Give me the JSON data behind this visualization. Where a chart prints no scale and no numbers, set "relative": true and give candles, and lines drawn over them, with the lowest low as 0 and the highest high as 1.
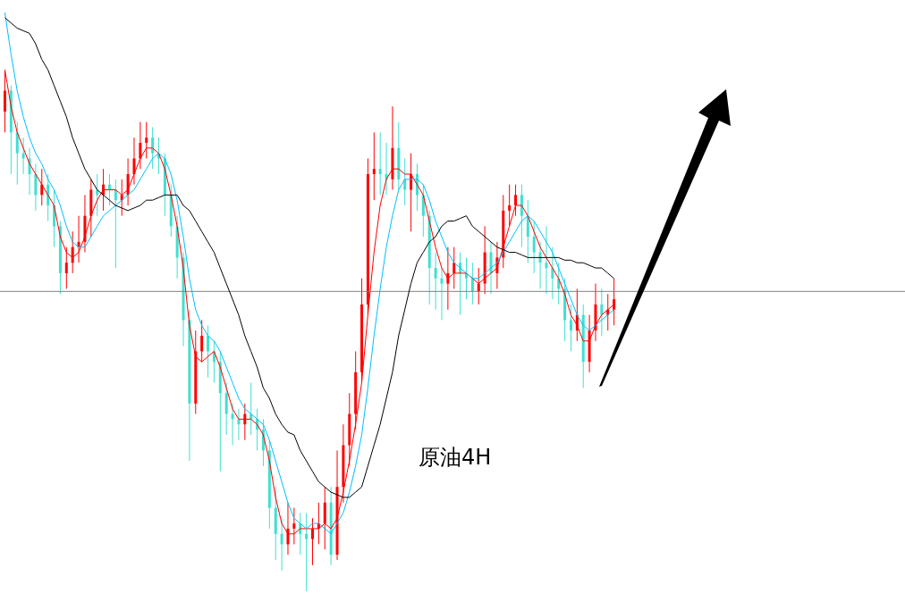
{
  "chart_data": {
    "type": "candlestick",
    "relative": true,
    "categories": [
      null,
      null,
      null,
      null,
      null,
      null,
      null,
      null,
      null,
      null,
      null,
      null,
      null,
      null,
      null,
      null,
      null,
      null,
      null,
      null,
      null,
      null,
      null,
      null,
      null,
      null,
      null,
      null,
      null,
      null,
      null,
      null,
      null,
      null,
      null,
      null,
      null,
      null,
      null,
      null,
      null,
      null,
      null,
      null,
      null,
      null,
      null,
      null,
      null,
      null,
      null,
      null,
      null,
      null,
      null,
      null,
      null,
      null,
      null,
      null,
      null,
      null,
      null,
      null,
      null,
      null,
      null,
      null,
      null,
      null,
      null,
      null,
      null,
      null,
      null,
      null,
      null,
      null,
      null,
      null,
      null,
      null,
      null,
      null,
      null,
      null,
      null,
      null,
      null,
      null,
      null,
      null,
      null,
      null,
      null,
      null,
      null,
      null,
      null,
      null
    ],
    "ohlc": [
      [
        0.92,
        1.0,
        0.88,
        0.96
      ],
      [
        0.96,
        0.97,
        0.8,
        0.88
      ],
      [
        0.88,
        0.9,
        0.78,
        0.84
      ],
      [
        0.84,
        0.87,
        0.8,
        0.83
      ],
      [
        0.83,
        0.85,
        0.76,
        0.8
      ],
      [
        0.8,
        0.82,
        0.73,
        0.76
      ],
      [
        0.76,
        0.81,
        0.74,
        0.78
      ],
      [
        0.78,
        0.8,
        0.71,
        0.74
      ],
      [
        0.74,
        0.77,
        0.66,
        0.7
      ],
      [
        0.7,
        0.71,
        0.57,
        0.61
      ],
      [
        0.61,
        0.66,
        0.58,
        0.63
      ],
      [
        0.63,
        0.69,
        0.61,
        0.66
      ],
      [
        0.66,
        0.72,
        0.63,
        0.67
      ],
      [
        0.67,
        0.76,
        0.65,
        0.72
      ],
      [
        0.72,
        0.79,
        0.68,
        0.77
      ],
      [
        0.77,
        0.8,
        0.72,
        0.76
      ],
      [
        0.76,
        0.81,
        0.73,
        0.78
      ],
      [
        0.78,
        0.8,
        0.74,
        0.77
      ],
      [
        0.77,
        0.79,
        0.62,
        0.75
      ],
      [
        0.75,
        0.79,
        0.72,
        0.76
      ],
      [
        0.76,
        0.83,
        0.74,
        0.8
      ],
      [
        0.8,
        0.87,
        0.78,
        0.83
      ],
      [
        0.83,
        0.9,
        0.81,
        0.86
      ],
      [
        0.86,
        0.9,
        0.83,
        0.87
      ],
      [
        0.87,
        0.89,
        0.81,
        0.84
      ],
      [
        0.84,
        0.87,
        0.8,
        0.83
      ],
      [
        0.83,
        0.84,
        0.72,
        0.76
      ],
      [
        0.76,
        0.78,
        0.68,
        0.7
      ],
      [
        0.7,
        0.72,
        0.6,
        0.64
      ],
      [
        0.64,
        0.65,
        0.47,
        0.52
      ],
      [
        0.52,
        0.54,
        0.25,
        0.36
      ],
      [
        0.36,
        0.5,
        0.34,
        0.46
      ],
      [
        0.46,
        0.52,
        0.44,
        0.49
      ],
      [
        0.49,
        0.51,
        0.41,
        0.46
      ],
      [
        0.46,
        0.48,
        0.4,
        0.44
      ],
      [
        0.44,
        0.46,
        0.23,
        0.38
      ],
      [
        0.38,
        0.4,
        0.3,
        0.34
      ],
      [
        0.34,
        0.36,
        0.28,
        0.33
      ],
      [
        0.33,
        0.35,
        0.29,
        0.32
      ],
      [
        0.32,
        0.36,
        0.29,
        0.34
      ],
      [
        0.34,
        0.4,
        0.3,
        0.33
      ],
      [
        0.33,
        0.35,
        0.27,
        0.31
      ],
      [
        0.31,
        0.33,
        0.24,
        0.27
      ],
      [
        0.27,
        0.29,
        0.12,
        0.16
      ],
      [
        0.16,
        0.2,
        0.06,
        0.11
      ],
      [
        0.11,
        0.14,
        0.04,
        0.09
      ],
      [
        0.09,
        0.17,
        0.07,
        0.12
      ],
      [
        0.12,
        0.16,
        0.09,
        0.13
      ],
      [
        0.13,
        0.15,
        0.07,
        0.11
      ],
      [
        0.11,
        0.15,
        0.0,
        0.1
      ],
      [
        0.1,
        0.14,
        0.05,
        0.12
      ],
      [
        0.12,
        0.17,
        0.09,
        0.13
      ],
      [
        0.13,
        0.2,
        0.08,
        0.17
      ],
      [
        0.17,
        0.2,
        0.05,
        0.07
      ],
      [
        0.07,
        0.27,
        0.06,
        0.2
      ],
      [
        0.2,
        0.32,
        0.17,
        0.28
      ],
      [
        0.28,
        0.38,
        0.24,
        0.34
      ],
      [
        0.34,
        0.46,
        0.31,
        0.42
      ],
      [
        0.42,
        0.6,
        0.4,
        0.55
      ],
      [
        0.55,
        0.83,
        0.53,
        0.8
      ],
      [
        0.8,
        0.88,
        0.75,
        0.81
      ],
      [
        0.81,
        0.88,
        0.76,
        0.8
      ],
      [
        0.8,
        0.86,
        0.76,
        0.79
      ],
      [
        0.79,
        0.93,
        0.77,
        0.85
      ],
      [
        0.85,
        0.9,
        0.77,
        0.79
      ],
      [
        0.79,
        0.83,
        0.74,
        0.77
      ],
      [
        0.77,
        0.84,
        0.69,
        0.8
      ],
      [
        0.8,
        0.82,
        0.73,
        0.76
      ],
      [
        0.76,
        0.78,
        0.68,
        0.72
      ],
      [
        0.72,
        0.73,
        0.55,
        0.62
      ],
      [
        0.62,
        0.65,
        0.54,
        0.6
      ],
      [
        0.6,
        0.62,
        0.52,
        0.59
      ],
      [
        0.59,
        0.66,
        0.54,
        0.61
      ],
      [
        0.61,
        0.66,
        0.58,
        0.63
      ],
      [
        0.63,
        0.65,
        0.53,
        0.61
      ],
      [
        0.61,
        0.64,
        0.56,
        0.6
      ],
      [
        0.6,
        0.63,
        0.55,
        0.575
      ],
      [
        0.575,
        0.62,
        0.55,
        0.59
      ],
      [
        0.59,
        0.7,
        0.57,
        0.65
      ],
      [
        0.65,
        0.67,
        0.57,
        0.61
      ],
      [
        0.61,
        0.67,
        0.58,
        0.64
      ],
      [
        0.64,
        0.76,
        0.62,
        0.73
      ],
      [
        0.73,
        0.78,
        0.7,
        0.74
      ],
      [
        0.74,
        0.78,
        0.72,
        0.76
      ],
      [
        0.76,
        0.78,
        0.66,
        0.72
      ],
      [
        0.72,
        0.75,
        0.63,
        0.68
      ],
      [
        0.68,
        0.71,
        0.61,
        0.65
      ],
      [
        0.65,
        0.67,
        0.58,
        0.63
      ],
      [
        0.63,
        0.7,
        0.57,
        0.62
      ],
      [
        0.62,
        0.66,
        0.56,
        0.6
      ],
      [
        0.6,
        0.63,
        0.55,
        0.58
      ],
      [
        0.58,
        0.6,
        0.48,
        0.52
      ],
      [
        0.52,
        0.55,
        0.46,
        0.5
      ],
      [
        0.5,
        0.58,
        0.48,
        0.53
      ],
      [
        0.53,
        0.55,
        0.39,
        0.44
      ],
      [
        0.44,
        0.53,
        0.42,
        0.5
      ],
      [
        0.5,
        0.59,
        0.48,
        0.55
      ],
      [
        0.55,
        0.58,
        0.49,
        0.53
      ],
      [
        0.53,
        0.57,
        0.5,
        0.54
      ],
      [
        0.54,
        0.6,
        0.51,
        0.56
      ]
    ],
    "colors": [
      "#ff0000",
      "#40e0d0",
      "#40e0d0",
      "#40e0d0",
      "#40e0d0",
      "#40e0d0",
      "#ff0000",
      "#40e0d0",
      "#40e0d0",
      "#40e0d0",
      "#ff0000",
      "#ff0000",
      "#ff0000",
      "#ff0000",
      "#ff0000",
      "#40e0d0",
      "#ff0000",
      "#40e0d0",
      "#40e0d0",
      "#ff0000",
      "#ff0000",
      "#ff0000",
      "#ff0000",
      "#ff0000",
      "#40e0d0",
      "#40e0d0",
      "#40e0d0",
      "#40e0d0",
      "#40e0d0",
      "#40e0d0",
      "#40e0d0",
      "#ff0000",
      "#ff0000",
      "#40e0d0",
      "#40e0d0",
      "#40e0d0",
      "#40e0d0",
      "#40e0d0",
      "#40e0d0",
      "#ff0000",
      "#40e0d0",
      "#40e0d0",
      "#40e0d0",
      "#40e0d0",
      "#40e0d0",
      "#40e0d0",
      "#ff0000",
      "#ff0000",
      "#40e0d0",
      "#40e0d0",
      "#ff0000",
      "#ff0000",
      "#ff0000",
      "#40e0d0",
      "#ff0000",
      "#ff0000",
      "#ff0000",
      "#ff0000",
      "#ff0000",
      "#ff0000",
      "#ff0000",
      "#40e0d0",
      "#40e0d0",
      "#ff0000",
      "#40e0d0",
      "#40e0d0",
      "#ff0000",
      "#40e0d0",
      "#40e0d0",
      "#40e0d0",
      "#40e0d0",
      "#40e0d0",
      "#ff0000",
      "#ff0000",
      "#40e0d0",
      "#40e0d0",
      "#40e0d0",
      "#ff0000",
      "#ff0000",
      "#40e0d0",
      "#ff0000",
      "#ff0000",
      "#ff0000",
      "#ff0000",
      "#40e0d0",
      "#40e0d0",
      "#40e0d0",
      "#40e0d0",
      "#40e0d0",
      "#40e0d0",
      "#40e0d0",
      "#40e0d0",
      "#40e0d0",
      "#ff0000",
      "#40e0d0",
      "#ff0000",
      "#ff0000",
      "#40e0d0",
      "#ff0000",
      "#ff0000"
    ],
    "series": [
      {
        "type": "line",
        "color": "#ff0000",
        "values": [
          1.0,
          0.93,
          0.88,
          0.85,
          0.82,
          0.8,
          0.78,
          0.76,
          0.74,
          0.68,
          0.65,
          0.64,
          0.65,
          0.68,
          0.72,
          0.75,
          0.77,
          0.77,
          0.77,
          0.76,
          0.77,
          0.8,
          0.83,
          0.85,
          0.85,
          0.84,
          0.81,
          0.76,
          0.7,
          0.62,
          0.51,
          0.45,
          0.44,
          0.45,
          0.46,
          0.43,
          0.39,
          0.35,
          0.33,
          0.33,
          0.33,
          0.32,
          0.3,
          0.25,
          0.18,
          0.13,
          0.11,
          0.11,
          0.12,
          0.12,
          0.12,
          0.12,
          0.13,
          0.12,
          0.14,
          0.19,
          0.25,
          0.32,
          0.4,
          0.53,
          0.65,
          0.74,
          0.79,
          0.81,
          0.81,
          0.8,
          0.8,
          0.78,
          0.76,
          0.71,
          0.66,
          0.62,
          0.6,
          0.61,
          0.61,
          0.61,
          0.6,
          0.59,
          0.6,
          0.61,
          0.62,
          0.66,
          0.7,
          0.74,
          0.74,
          0.72,
          0.69,
          0.66,
          0.64,
          0.62,
          0.6,
          0.57,
          0.53,
          0.51,
          0.48,
          0.48,
          0.51,
          0.53,
          0.54,
          0.55
        ]
      },
      {
        "type": "line",
        "color": "#00bfff",
        "values": [
          1.11,
          1.03,
          0.96,
          0.91,
          0.87,
          0.84,
          0.82,
          0.79,
          0.77,
          0.74,
          0.7,
          0.67,
          0.66,
          0.66,
          0.68,
          0.7,
          0.72,
          0.73,
          0.74,
          0.75,
          0.76,
          0.77,
          0.79,
          0.81,
          0.83,
          0.84,
          0.83,
          0.8,
          0.75,
          0.68,
          0.6,
          0.54,
          0.51,
          0.49,
          0.48,
          0.46,
          0.43,
          0.4,
          0.37,
          0.35,
          0.34,
          0.33,
          0.32,
          0.29,
          0.25,
          0.21,
          0.17,
          0.14,
          0.13,
          0.12,
          0.13,
          0.13,
          0.12,
          0.11,
          0.13,
          0.15,
          0.19,
          0.24,
          0.3,
          0.39,
          0.49,
          0.58,
          0.66,
          0.72,
          0.77,
          0.79,
          0.79,
          0.79,
          0.78,
          0.75,
          0.71,
          0.68,
          0.65,
          0.63,
          0.62,
          0.61,
          0.6,
          0.6,
          0.61,
          0.62,
          0.63,
          0.65,
          0.67,
          0.69,
          0.71,
          0.72,
          0.71,
          0.69,
          0.67,
          0.65,
          0.62,
          0.59,
          0.56,
          0.53,
          0.51,
          0.5,
          0.51,
          0.52,
          0.53,
          0.54
        ]
      },
      {
        "type": "line",
        "color": "#000000",
        "values": [
          1.1,
          1.09,
          1.08,
          1.075,
          1.07,
          1.05,
          1.02,
          1.0,
          0.97,
          0.94,
          0.91,
          0.87,
          0.84,
          0.81,
          0.79,
          0.77,
          0.76,
          0.75,
          0.74,
          0.735,
          0.73,
          0.735,
          0.74,
          0.75,
          0.75,
          0.755,
          0.76,
          0.76,
          0.76,
          0.74,
          0.73,
          0.71,
          0.69,
          0.67,
          0.65,
          0.62,
          0.59,
          0.56,
          0.53,
          0.49,
          0.46,
          0.43,
          0.39,
          0.37,
          0.34,
          0.32,
          0.305,
          0.3,
          0.27,
          0.25,
          0.23,
          0.21,
          0.2,
          0.19,
          0.185,
          0.18,
          0.18,
          0.19,
          0.2,
          0.24,
          0.28,
          0.32,
          0.37,
          0.42,
          0.49,
          0.54,
          0.59,
          0.63,
          0.65,
          0.67,
          0.68,
          0.7,
          0.71,
          0.71,
          0.715,
          0.72,
          0.7,
          0.69,
          0.68,
          0.67,
          0.66,
          0.655,
          0.65,
          0.65,
          0.645,
          0.64,
          0.64,
          0.64,
          0.64,
          0.64,
          0.64,
          0.635,
          0.635,
          0.63,
          0.63,
          0.625,
          0.62,
          0.62,
          0.61,
          0.6
        ]
      }
    ],
    "ref_lines": [
      {
        "axis": "y",
        "value": 0.575,
        "color": "#808080"
      }
    ],
    "annotations": [
      "原油4H"
    ]
  }
}
